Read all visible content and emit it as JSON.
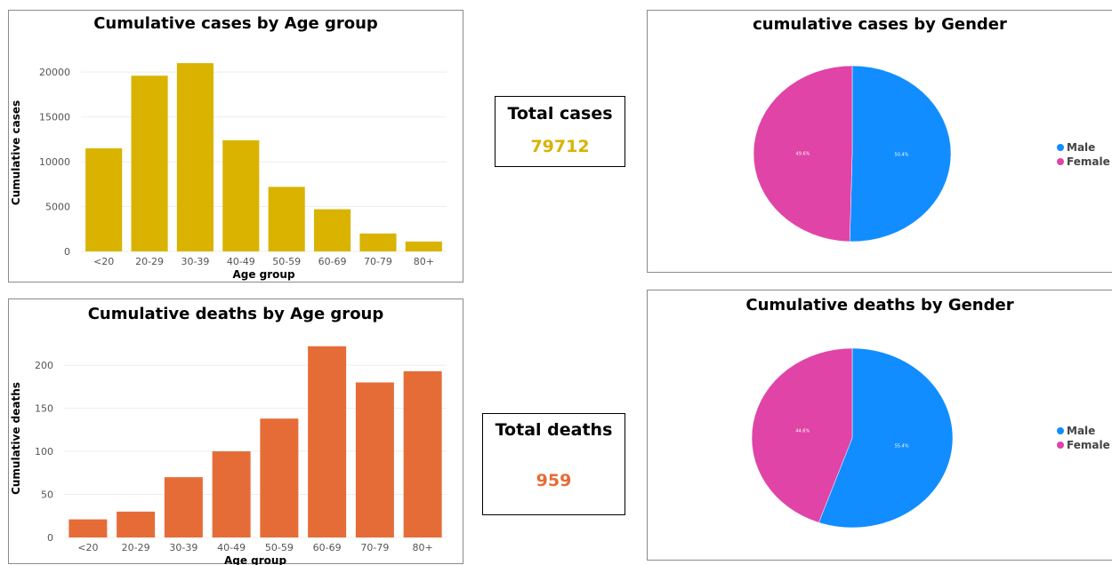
{
  "chart_data": [
    {
      "type": "bar",
      "title": "Cumulative cases by Age group",
      "xlabel": "Age group",
      "ylabel": "Cumulative cases",
      "categories": [
        "<20",
        "20-29",
        "30-39",
        "40-49",
        "50-59",
        "60-69",
        "70-79",
        "80+"
      ],
      "values": [
        11500,
        19600,
        21000,
        12400,
        7200,
        4700,
        2000,
        1100
      ],
      "ylim": [
        0,
        22000
      ],
      "yticks": [
        0,
        5000,
        10000,
        15000,
        20000
      ],
      "color": "#D9B300"
    },
    {
      "type": "pie",
      "title": "cumulative cases by Gender",
      "labels": [
        "Male",
        "Female"
      ],
      "values": [
        50.4,
        49.6
      ],
      "slice_labels": [
        "50.4%",
        "49.6%"
      ],
      "colors": [
        "#118DFF",
        "#E044A7"
      ],
      "legend_position": "right"
    },
    {
      "type": "bar",
      "title": "Cumulative deaths by Age group",
      "xlabel": "Age group",
      "ylabel": "Cumulative deaths",
      "categories": [
        "<20",
        "20-29",
        "30-39",
        "40-49",
        "50-59",
        "60-69",
        "70-79",
        "80+"
      ],
      "values": [
        21,
        30,
        70,
        100,
        138,
        222,
        180,
        193
      ],
      "ylim": [
        0,
        230
      ],
      "yticks": [
        0,
        50,
        100,
        150,
        200
      ],
      "color": "#E66C37"
    },
    {
      "type": "pie",
      "title": "Cumulative deaths by Gender",
      "labels": [
        "Male",
        "Female"
      ],
      "values": [
        55.4,
        44.6
      ],
      "slice_labels": [
        "55.4%",
        "44.6%"
      ],
      "colors": [
        "#118DFF",
        "#E044A7"
      ],
      "legend_position": "right"
    }
  ],
  "kpis": {
    "cases": {
      "label": "Total cases",
      "value": "79712",
      "color": "#D9B300"
    },
    "deaths": {
      "label": "Total deaths",
      "value": "959",
      "color": "#E66C37"
    }
  }
}
